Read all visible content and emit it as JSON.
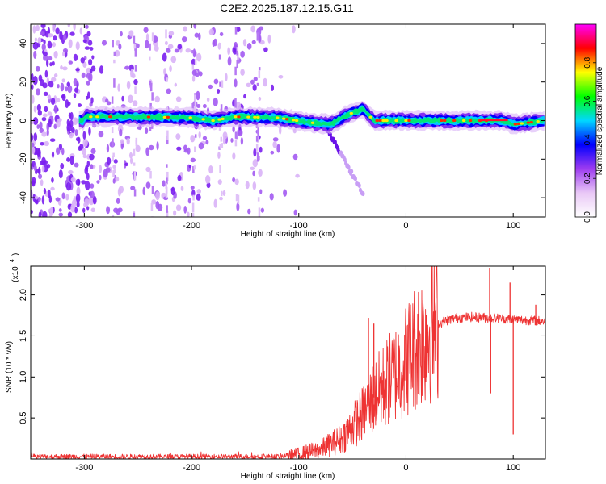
{
  "figure": {
    "title": "C2E2.2025.187.12.15.G11"
  },
  "chart_data": [
    {
      "type": "heatmap",
      "xlabel": "Height of straight line (km)",
      "ylabel": "Frequency (Hz)",
      "xlim": [
        -350,
        130
      ],
      "ylim": [
        -50,
        50
      ],
      "xticks": [
        -300,
        -200,
        -100,
        0,
        100
      ],
      "yticks": [
        -40,
        -20,
        0,
        20,
        40
      ],
      "colorbar": {
        "label": "Normalized spectral amplitude",
        "range": [
          0.0,
          1.0
        ],
        "ticks": [
          "0.0",
          "0.2",
          "0.4",
          "0.6",
          "0.8"
        ],
        "colors": [
          "#ffffff",
          "#e9c8f6",
          "#9d3cf0",
          "#0000ff",
          "#00d8ff",
          "#00ff00",
          "#ffff00",
          "#ff0000",
          "#ff00ff"
        ]
      },
      "ridge": [
        {
          "x": -300,
          "f": 2.0
        },
        {
          "x": -250,
          "f": 2.0
        },
        {
          "x": -200,
          "f": 1.5
        },
        {
          "x": -180,
          "f": 0.0
        },
        {
          "x": -160,
          "f": 2.0
        },
        {
          "x": -120,
          "f": 1.5
        },
        {
          "x": -90,
          "f": -1.0
        },
        {
          "x": -70,
          "f": -2.0
        },
        {
          "x": -55,
          "f": 3.0
        },
        {
          "x": -40,
          "f": 6.0
        },
        {
          "x": -30,
          "f": 0.0
        },
        {
          "x": 0,
          "f": 0.0
        },
        {
          "x": 60,
          "f": 0.0
        },
        {
          "x": 90,
          "f": 0.0
        },
        {
          "x": 100,
          "f": -2.0
        },
        {
          "x": 130,
          "f": 0.0
        }
      ]
    },
    {
      "type": "line",
      "xlabel": "Height of straight line (km)",
      "ylabel": "SNR (10 * v/v)",
      "yscale_label": "(x10",
      "yscale_exp": "4",
      "xlim": [
        -350,
        130
      ],
      "ylim": [
        0,
        2.35
      ],
      "xticks": [
        -300,
        -200,
        -100,
        0,
        100
      ],
      "yticks": [
        0.5,
        1.0,
        1.5,
        2.0
      ],
      "series": [
        {
          "color": "#ee3333",
          "envelope": [
            {
              "x": -350,
              "y": 0.03
            },
            {
              "x": -200,
              "y": 0.03
            },
            {
              "x": -120,
              "y": 0.03
            },
            {
              "x": -100,
              "y": 0.06
            },
            {
              "x": -80,
              "y": 0.12
            },
            {
              "x": -60,
              "y": 0.25
            },
            {
              "x": -50,
              "y": 0.4
            },
            {
              "x": -40,
              "y": 0.55
            },
            {
              "x": -30,
              "y": 0.75
            },
            {
              "x": -20,
              "y": 0.9
            },
            {
              "x": -10,
              "y": 1.05
            },
            {
              "x": 0,
              "y": 1.2
            },
            {
              "x": 10,
              "y": 1.4
            },
            {
              "x": 20,
              "y": 1.55
            },
            {
              "x": 30,
              "y": 1.65
            },
            {
              "x": 45,
              "y": 1.72
            },
            {
              "x": 60,
              "y": 1.73
            },
            {
              "x": 80,
              "y": 1.72
            },
            {
              "x": 100,
              "y": 1.7
            },
            {
              "x": 130,
              "y": 1.68
            }
          ],
          "spikes": [
            {
              "x": -35,
              "y": 1.72
            },
            {
              "x": -30,
              "y": 1.65
            },
            {
              "x": 78,
              "y": 2.33
            },
            {
              "x": 79,
              "y": 0.8
            },
            {
              "x": 97,
              "y": 2.15
            },
            {
              "x": 100,
              "y": 0.3
            },
            {
              "x": 121,
              "y": 1.88
            }
          ]
        }
      ]
    }
  ]
}
